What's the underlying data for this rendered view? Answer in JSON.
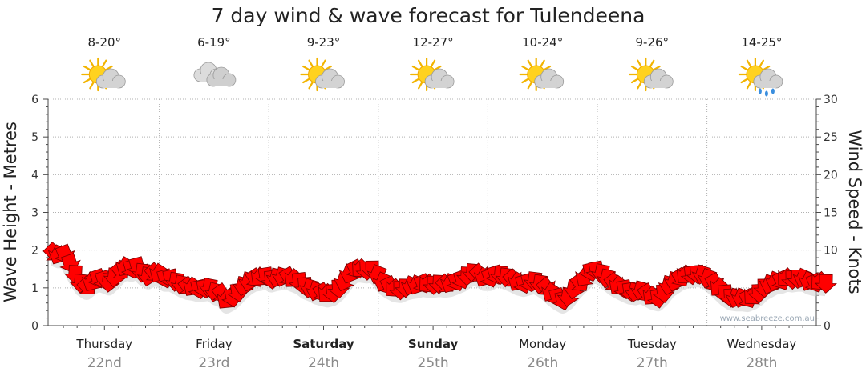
{
  "chart_data": {
    "type": "line",
    "title": "7 day wind & wave forecast for Tulendeena",
    "ylabel": "Wave Height - Metres",
    "y2label": "Wind Speed - Knots",
    "ylim": [
      0,
      6
    ],
    "y2lim": [
      0,
      30
    ],
    "yticks": [
      "0",
      "1",
      "2",
      "3",
      "4",
      "5",
      "6"
    ],
    "y2ticks": [
      "0",
      "5",
      "10",
      "15",
      "20",
      "25",
      "30"
    ],
    "grid": true,
    "days": [
      {
        "name": "Thursday",
        "date": "22nd",
        "temp": "8-20°",
        "icon": "partly-cloudy-icon",
        "bold": false
      },
      {
        "name": "Friday",
        "date": "23rd",
        "temp": "6-19°",
        "icon": "cloudy-icon",
        "bold": false
      },
      {
        "name": "Saturday",
        "date": "24th",
        "temp": "9-23°",
        "icon": "partly-cloudy-icon",
        "bold": true
      },
      {
        "name": "Sunday",
        "date": "25th",
        "temp": "12-27°",
        "icon": "partly-cloudy-icon",
        "bold": true
      },
      {
        "name": "Monday",
        "date": "26th",
        "temp": "10-24°",
        "icon": "partly-cloudy-icon",
        "bold": false
      },
      {
        "name": "Tuesday",
        "date": "27th",
        "temp": "9-26°",
        "icon": "partly-cloudy-icon",
        "bold": false
      },
      {
        "name": "Wednesday",
        "date": "28th",
        "temp": "14-25°",
        "icon": "showers-icon",
        "bold": false
      }
    ],
    "series": [
      {
        "values_knots": [
          9.8,
          9.5,
          9.6,
          8.4,
          7.0,
          5.8,
          5.3,
          5.9,
          6.4,
          6.2,
          5.9,
          6.6,
          7.4,
          7.9,
          7.7,
          8.0,
          7.2,
          6.7,
          7.1,
          7.0,
          6.4,
          6.4,
          6.0,
          5.6,
          5.3,
          5.2,
          5.0,
          5.1,
          5.2,
          4.6,
          4.4,
          3.5,
          3.9,
          4.6,
          5.4,
          6.0,
          6.4,
          6.5,
          6.7,
          6.3,
          6.5,
          6.6,
          6.6,
          6.3,
          6.0,
          5.4,
          5.1,
          4.7,
          4.5,
          4.3,
          4.5,
          5.1,
          6.0,
          7.0,
          7.6,
          7.6,
          7.5,
          7.6,
          6.9,
          5.9,
          5.4,
          5.0,
          4.9,
          5.2,
          5.4,
          5.5,
          5.7,
          5.6,
          5.6,
          5.7,
          5.6,
          5.7,
          6.0,
          6.3,
          6.8,
          7.2,
          7.0,
          6.5,
          6.5,
          6.9,
          6.9,
          6.6,
          6.3,
          5.9,
          5.7,
          5.9,
          6.1,
          5.7,
          5.2,
          4.5,
          3.9,
          3.5,
          4.0,
          5.0,
          5.8,
          6.5,
          7.3,
          7.5,
          7.1,
          6.4,
          5.8,
          5.4,
          5.0,
          4.7,
          4.6,
          4.8,
          4.4,
          4.0,
          3.8,
          4.5,
          5.5,
          6.0,
          6.5,
          6.8,
          6.9,
          7.0,
          6.9,
          6.4,
          5.8,
          5.1,
          4.4,
          3.9,
          3.8,
          3.8,
          3.7,
          4.0,
          4.5,
          5.2,
          5.6,
          6.0,
          6.1,
          6.4,
          6.3,
          6.4,
          6.4,
          6.0,
          5.8,
          5.9,
          5.8
        ]
      }
    ]
  },
  "watermark": "www.seabreeze.com.au",
  "colors": {
    "arrow": "#ff0000",
    "arrow_stroke": "#7a0000",
    "grid": "#b0b0b0",
    "axis": "#4a4a4a"
  }
}
